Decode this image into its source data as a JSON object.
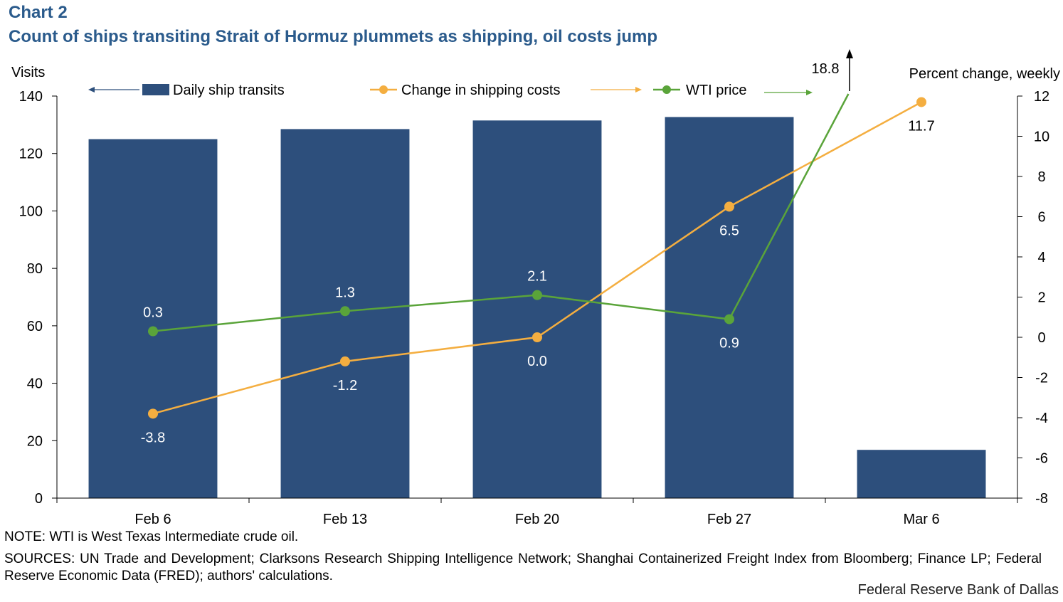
{
  "chart_label": "Chart 2",
  "title": "Count of ships transiting Strait of Hormuz plummets as shipping, oil costs jump",
  "note": "NOTE: WTI is West Texas Intermediate crude oil.",
  "sources": "SOURCES: UN Trade and Development; Clarksons Research Shipping Intelligence Network; Shanghai Containerized Freight Index from Bloomberg; Finance LP; Federal Reserve Economic Data (FRED); authors' calculations.",
  "credit": "Federal Reserve Bank of Dallas",
  "colors": {
    "bars": "#2d4f7c",
    "shipping": "#f4ae40",
    "wti": "#5aa43a",
    "title": "#2b5b8c"
  },
  "chart_data": {
    "type": "bar",
    "categories": [
      "Feb 6",
      "Feb 13",
      "Feb 20",
      "Feb 27",
      "Mar 6"
    ],
    "y_left": {
      "label": "Visits",
      "ylim": [
        0,
        140
      ],
      "ticks": [
        0,
        20,
        40,
        60,
        80,
        100,
        120,
        140
      ]
    },
    "y_right": {
      "label": "Percent change, weekly",
      "ylim": [
        -8,
        12
      ],
      "ticks": [
        -8,
        -6,
        -4,
        -2,
        0,
        2,
        4,
        6,
        8,
        10,
        12
      ]
    },
    "series": [
      {
        "name": "Daily ship transits",
        "type": "bar",
        "axis": "left",
        "values": [
          125,
          128.5,
          131.5,
          132.7,
          16.8
        ]
      },
      {
        "name": "Change in shipping costs",
        "type": "line",
        "axis": "right",
        "values": [
          -3.8,
          -1.2,
          0.0,
          6.5,
          11.7
        ],
        "labels": [
          "-3.8",
          "-1.2",
          "0.0",
          "6.5",
          "11.7"
        ]
      },
      {
        "name": "WTI price",
        "type": "line",
        "axis": "right",
        "values": [
          0.3,
          1.3,
          2.1,
          0.9,
          18.8
        ],
        "labels": [
          "0.3",
          "1.3",
          "2.1",
          "0.9",
          "18.8"
        ],
        "off_scale_last": true
      }
    ],
    "legend_position": "top",
    "grid": false
  }
}
